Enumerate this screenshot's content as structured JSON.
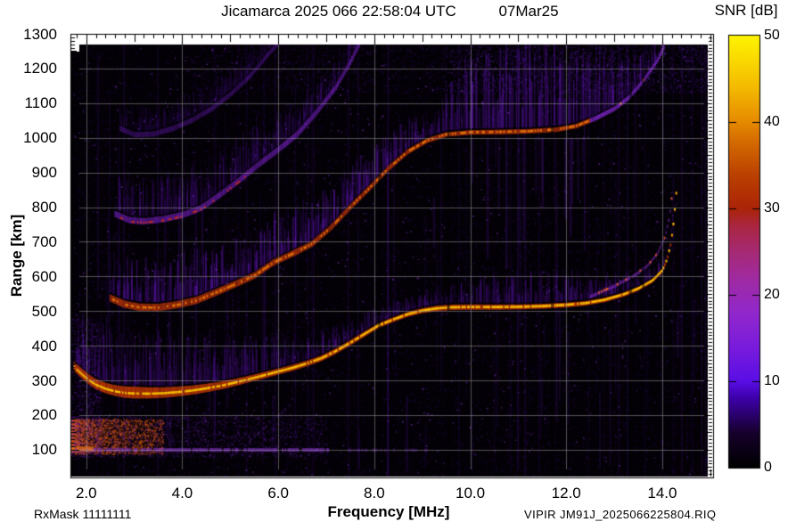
{
  "header": {
    "title": "Jicamarca 2025 066 22:58:04 UTC",
    "date": "07Mar25"
  },
  "footer": {
    "rx_mask": "RxMask 11111111",
    "file_id": "VIPIR  JM91J_2025066225804.RIQ"
  },
  "chart_data": {
    "type": "heatmap",
    "title": "Jicamarca 2025 066 22:58:04 UTC 07Mar25",
    "description": "VIPIR ionosonde ionogram: echo SNR versus sounding frequency and virtual range. Shows F-region trace with multiple hops, cusp asymptote near 14.3 MHz, E-region noise blob and 100 km sporadic-E line.",
    "axes": {
      "x": {
        "label": "Frequency [MHz]",
        "min": 1.67,
        "max": 15.06,
        "tick_values": [
          2,
          4,
          6,
          8,
          10,
          12,
          14
        ],
        "tick_labels": [
          "2.0",
          "4.0",
          "6.0",
          "8.0",
          "10.0",
          "12.0",
          "14.0"
        ],
        "minor_tick_step": 0.2,
        "grid": true
      },
      "y": {
        "label": "Range [km]",
        "min": 20,
        "max": 1300,
        "tick_values": [
          100,
          200,
          300,
          400,
          500,
          600,
          700,
          800,
          900,
          1000,
          1100,
          1200,
          1300
        ],
        "tick_labels": [
          "100",
          "200",
          "300",
          "400",
          "500",
          "600",
          "700",
          "800",
          "900",
          "1000",
          "1100",
          "1200",
          "1300"
        ],
        "minor_tick_step": 10,
        "grid": true
      }
    },
    "colorbar": {
      "label": "SNR [dB]",
      "min": 0,
      "max": 50,
      "tick_values": [
        0,
        10,
        20,
        30,
        40,
        50
      ],
      "tick_labels": [
        "0",
        "10",
        "20",
        "30",
        "40",
        "50"
      ],
      "stops": [
        [
          0,
          "#000000"
        ],
        [
          0.08,
          "#16002c"
        ],
        [
          0.16,
          "#3c00a8"
        ],
        [
          0.2,
          "#5a0ee6"
        ],
        [
          0.28,
          "#7a1cdc"
        ],
        [
          0.36,
          "#9228cc"
        ],
        [
          0.44,
          "#a02ba0"
        ],
        [
          0.5,
          "#a62a74"
        ],
        [
          0.56,
          "#aa2640"
        ],
        [
          0.6,
          "#ab2408"
        ],
        [
          0.68,
          "#bc4200"
        ],
        [
          0.76,
          "#d66e00"
        ],
        [
          0.8,
          "#e68a00"
        ],
        [
          0.88,
          "#f4ba00"
        ],
        [
          1,
          "#fff400"
        ]
      ]
    },
    "traces": [
      {
        "name": "F-region 1st hop",
        "pts": [
          [
            1.75,
            330
          ],
          [
            1.9,
            310
          ],
          [
            2.05,
            292
          ],
          [
            2.2,
            278
          ],
          [
            2.4,
            266
          ],
          [
            2.6,
            258
          ],
          [
            2.8,
            253
          ],
          [
            3.0,
            251
          ],
          [
            3.3,
            251
          ],
          [
            3.6,
            253
          ],
          [
            3.9,
            257
          ],
          [
            4.2,
            262
          ],
          [
            4.5,
            269
          ],
          [
            4.8,
            277
          ],
          [
            5.1,
            287
          ],
          [
            5.4,
            298
          ],
          [
            5.7,
            309
          ],
          [
            6.0,
            320
          ],
          [
            6.3,
            331
          ],
          [
            6.6,
            344
          ],
          [
            6.9,
            359
          ],
          [
            7.2,
            380
          ],
          [
            7.5,
            404
          ],
          [
            7.8,
            430
          ],
          [
            8.1,
            455
          ],
          [
            8.4,
            472
          ],
          [
            8.7,
            487
          ],
          [
            9.0,
            497
          ],
          [
            9.3,
            503
          ],
          [
            9.6,
            506
          ],
          [
            10.0,
            507
          ],
          [
            10.5,
            507
          ],
          [
            11.0,
            508
          ],
          [
            11.5,
            510
          ],
          [
            12.0,
            514
          ],
          [
            12.4,
            519
          ],
          [
            12.8,
            529
          ],
          [
            13.2,
            545
          ],
          [
            13.5,
            562
          ],
          [
            13.8,
            586
          ],
          [
            14.0,
            615
          ],
          [
            14.1,
            648
          ],
          [
            14.18,
            695
          ],
          [
            14.24,
            760
          ],
          [
            14.3,
            855
          ]
        ],
        "band": [
          [
            1.75,
            9
          ],
          [
            3.0,
            12
          ],
          [
            4.2,
            9
          ],
          [
            5.5,
            6
          ],
          [
            7.0,
            5
          ],
          [
            8.5,
            4
          ],
          [
            9.5,
            5
          ],
          [
            12.0,
            4
          ],
          [
            13.2,
            3.5
          ],
          [
            14.0,
            2.5
          ],
          [
            14.3,
            2
          ]
        ],
        "bandColor": [
          204,
          60,
          6
        ],
        "bandA": 0.85,
        "core": [
          255,
          212,
          0
        ],
        "coreP": 0.85,
        "fuzz": [
          [
            1.75,
            150
          ],
          [
            2.5,
            175
          ],
          [
            3.5,
            160
          ],
          [
            4.5,
            125
          ],
          [
            5.5,
            100
          ],
          [
            6.5,
            80
          ],
          [
            7.5,
            55
          ],
          [
            8.8,
            35
          ],
          [
            9.7,
            60
          ],
          [
            10.3,
            85
          ],
          [
            11.5,
            90
          ],
          [
            12.5,
            80
          ],
          [
            13.2,
            60
          ],
          [
            13.8,
            30
          ],
          [
            14.3,
            12
          ]
        ],
        "fa": 0.22
      },
      {
        "name": "F-region 1st hop x-mode",
        "pts": [
          [
            12.5,
            540
          ],
          [
            13.0,
            570
          ],
          [
            13.4,
            600
          ],
          [
            13.7,
            630
          ],
          [
            13.9,
            665
          ],
          [
            14.05,
            710
          ],
          [
            14.15,
            770
          ],
          [
            14.2,
            830
          ]
        ],
        "band": [
          [
            12.5,
            2.5
          ],
          [
            14.2,
            2.5
          ]
        ],
        "bandColor": [
          150,
          50,
          220
        ],
        "bandA": 0.5,
        "core": [
          220,
          90,
          20
        ],
        "coreP": 0.25,
        "fa": 0
      },
      {
        "name": "F-region 2nd hop",
        "pts": [
          [
            2.5,
            530
          ],
          [
            2.8,
            512
          ],
          [
            3.1,
            504
          ],
          [
            3.5,
            503
          ],
          [
            3.9,
            511
          ],
          [
            4.3,
            524
          ],
          [
            4.7,
            547
          ],
          [
            5.1,
            571
          ],
          [
            5.5,
            596
          ],
          [
            5.9,
            634
          ],
          [
            6.3,
            660
          ],
          [
            6.7,
            688
          ],
          [
            7.1,
            736
          ],
          [
            7.5,
            795
          ],
          [
            7.9,
            850
          ],
          [
            8.3,
            908
          ],
          [
            8.7,
            956
          ],
          [
            9.1,
            988
          ],
          [
            9.5,
            1006
          ],
          [
            10.0,
            1012
          ],
          [
            10.6,
            1013
          ],
          [
            11.2,
            1015
          ],
          [
            11.8,
            1020
          ],
          [
            12.2,
            1030
          ],
          [
            12.6,
            1052
          ],
          [
            13.0,
            1080
          ],
          [
            13.3,
            1112
          ],
          [
            13.6,
            1160
          ],
          [
            13.9,
            1220
          ],
          [
            14.05,
            1262
          ]
        ],
        "band": [
          [
            2.5,
            7
          ],
          [
            4,
            7
          ],
          [
            6,
            6
          ],
          [
            8,
            5
          ],
          [
            9.5,
            4
          ],
          [
            12,
            4
          ],
          [
            14.05,
            4
          ]
        ],
        "bandColor": [
          185,
          52,
          10
        ],
        "bandA": 0.8,
        "fadeF": 12.5,
        "fadeColor": [
          130,
          40,
          210
        ],
        "core": [
          235,
          125,
          10
        ],
        "coreP": 0.5,
        "fuzz": [
          [
            2.5,
            110
          ],
          [
            4,
            130
          ],
          [
            6,
            120
          ],
          [
            8,
            95
          ],
          [
            9.3,
            60
          ],
          [
            9.9,
            200
          ],
          [
            10.8,
            235
          ],
          [
            12,
            235
          ],
          [
            12.7,
            180
          ],
          [
            13.4,
            90
          ],
          [
            14.05,
            35
          ]
        ],
        "fa": 0.3
      },
      {
        "name": "F-region 3rd hop",
        "pts": [
          [
            2.6,
            774
          ],
          [
            2.9,
            756
          ],
          [
            3.2,
            753
          ],
          [
            3.6,
            759
          ],
          [
            4.0,
            771
          ],
          [
            4.4,
            792
          ],
          [
            4.8,
            831
          ],
          [
            5.2,
            873
          ],
          [
            5.6,
            918
          ],
          [
            6.0,
            960
          ],
          [
            6.4,
            1005
          ],
          [
            6.8,
            1068
          ],
          [
            7.2,
            1140
          ],
          [
            7.5,
            1212
          ],
          [
            7.7,
            1268
          ]
        ],
        "band": [
          [
            2.6,
            6
          ],
          [
            7.7,
            6
          ]
        ],
        "bandColor": [
          125,
          35,
          205
        ],
        "bandA": 0.6,
        "edgeColor": [
          200,
          45,
          15
        ],
        "edgeP": 0.3,
        "edgeF": 5.4,
        "fuzz": [
          [
            2.6,
            110
          ],
          [
            4,
            120
          ],
          [
            5.5,
            100
          ],
          [
            7,
            70
          ],
          [
            7.7,
            50
          ]
        ],
        "fa": 0.18
      },
      {
        "name": "F-region 4th hop",
        "pts": [
          [
            2.7,
            1022
          ],
          [
            3.0,
            1004
          ],
          [
            3.4,
            1006
          ],
          [
            3.8,
            1022
          ],
          [
            4.2,
            1046
          ],
          [
            4.6,
            1078
          ],
          [
            5.0,
            1120
          ],
          [
            5.4,
            1172
          ],
          [
            5.8,
            1238
          ],
          [
            6.0,
            1268
          ]
        ],
        "band": [
          [
            2.7,
            5
          ],
          [
            6.0,
            5
          ]
        ],
        "bandColor": [
          105,
          28,
          185
        ],
        "bandA": 0.4,
        "fuzz": [
          [
            2.7,
            60
          ],
          [
            4,
            70
          ],
          [
            6,
            50
          ]
        ],
        "fa": 0.1
      },
      {
        "name": "Sporadic-E 100 km line",
        "pts": [
          [
            1.67,
            97
          ],
          [
            7.1,
            97
          ]
        ],
        "band": [
          [
            1.67,
            3
          ],
          [
            7.1,
            3
          ]
        ],
        "bandColor": [
          145,
          55,
          220
        ],
        "bandA": 0.55,
        "bandP": 0.85,
        "fa": 0
      },
      {
        "name": "Sporadic-E faint tail",
        "pts": [
          [
            7.1,
            97
          ],
          [
            9.6,
            97
          ]
        ],
        "band": [
          [
            7.1,
            2.5
          ],
          [
            9.6,
            2.5
          ]
        ],
        "bandColor": [
          120,
          40,
          200
        ],
        "bandA": 0.3,
        "bandP": 0.4,
        "fa": 0
      },
      {
        "name": "Sporadic-E strong left edge",
        "pts": [
          [
            1.67,
            99
          ],
          [
            2.15,
            99
          ]
        ],
        "band": [
          [
            1.67,
            4
          ],
          [
            2.15,
            4
          ]
        ],
        "bandColor": [
          230,
          115,
          12
        ],
        "bandA": 0.8,
        "bandP": 0.9,
        "fa": 0
      },
      {
        "name": "oblique streak",
        "pts": [
          [
            5.1,
            85
          ],
          [
            6.3,
            235
          ]
        ],
        "band": [
          [
            5.1,
            2
          ],
          [
            6.3,
            2
          ]
        ],
        "bandColor": [
          130,
          45,
          210
        ],
        "bandA": 0.3,
        "bandP": 0.6,
        "fa": 0
      }
    ],
    "noise": {
      "regions": [
        {
          "f": [
            1.67,
            15.06
          ],
          "km": [
            24,
            1268
          ],
          "n": 22000,
          "c": [
            92,
            28,
            190
          ],
          "a": [
            0.02,
            0.2
          ]
        },
        {
          "f": [
            1.67,
            15.06
          ],
          "km": [
            24,
            1268
          ],
          "n": 800,
          "c": [
            150,
            60,
            235
          ],
          "a": [
            0.3,
            0.55
          ]
        },
        {
          "f": [
            1.67,
            3.6
          ],
          "km": [
            88,
            190
          ],
          "n": 3200,
          "c": [
            228,
            95,
            12
          ],
          "a": [
            0.1,
            0.55
          ],
          "pow": 1.8
        },
        {
          "f": [
            1.67,
            7.0
          ],
          "km": [
            80,
            198
          ],
          "n": 2600,
          "c": [
            130,
            42,
            215
          ],
          "a": [
            0.05,
            0.28
          ],
          "pow": 1.5
        },
        {
          "f": [
            1.67,
            2.3
          ],
          "km": [
            85,
            480
          ],
          "n": 1200,
          "c": [
            120,
            36,
            215
          ],
          "a": [
            0.05,
            0.28
          ]
        },
        {
          "f": [
            9.4,
            14.95
          ],
          "km": [
            1130,
            1266
          ],
          "n": 2600,
          "c": [
            118,
            40,
            220
          ],
          "a": [
            0.05,
            0.28
          ]
        },
        {
          "f": [
            4.2,
            9.4
          ],
          "km": [
            1130,
            1266
          ],
          "n": 900,
          "c": [
            118,
            40,
            220
          ],
          "a": [
            0.04,
            0.18
          ]
        }
      ],
      "rfi_columns": {
        "n": 135,
        "f": [
          1.7,
          14.9
        ],
        "a": [
          0.03,
          0.13
        ],
        "c": [
          105,
          30,
          205
        ]
      },
      "inter_plateau": {
        "n": 18,
        "f": [
          9.9,
          12.55
        ],
        "top_km": 1000,
        "h_km": [
          60,
          380
        ],
        "a": [
          0.07,
          0.18
        ],
        "c": [
          115,
          35,
          215
        ]
      },
      "dark_columns": {
        "f": [
          8.08,
          9.52,
          11.68,
          13.32,
          13.58
        ],
        "w": 3,
        "a": 0.5
      }
    }
  }
}
